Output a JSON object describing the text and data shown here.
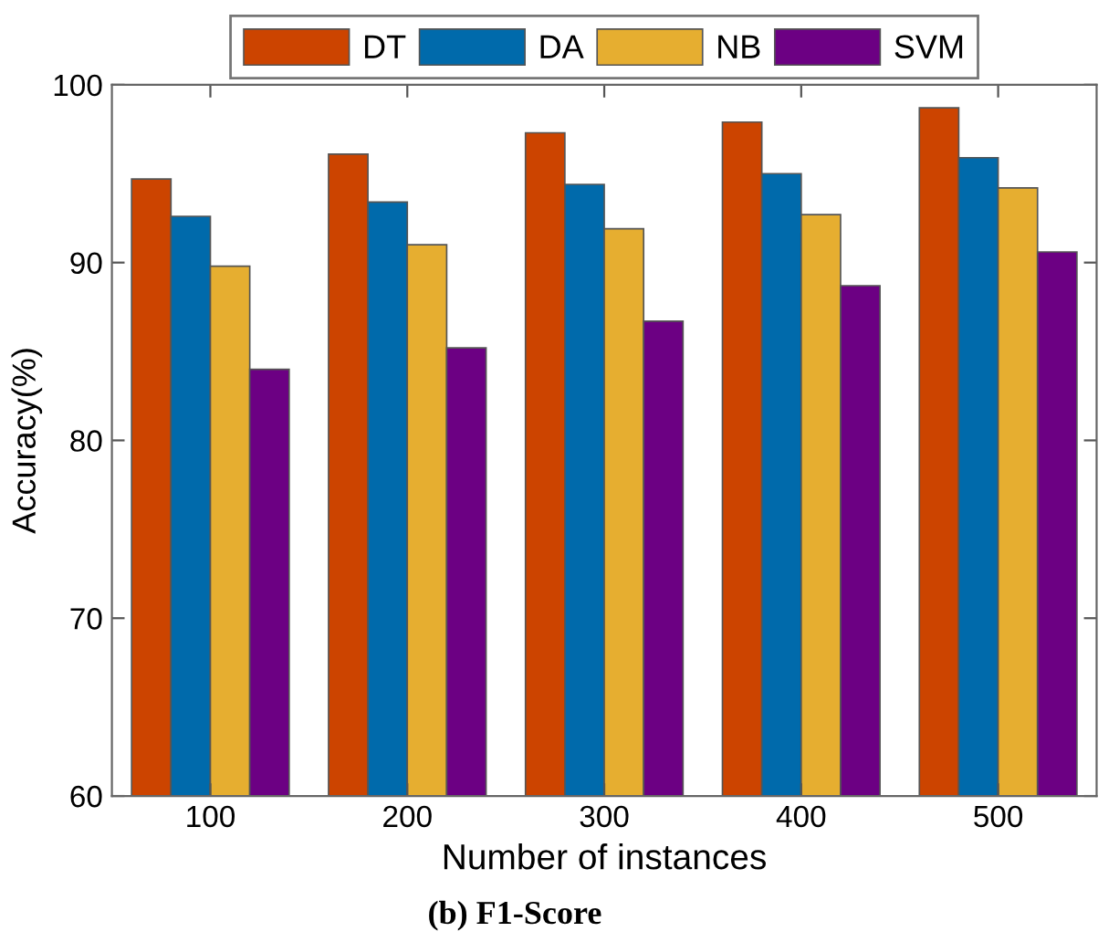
{
  "chart_data": {
    "type": "bar",
    "xlabel": "Number of instances",
    "ylabel": "Accuracy(%)",
    "categories": [
      "100",
      "200",
      "300",
      "400",
      "500"
    ],
    "series": [
      {
        "name": "DT",
        "color": "#cc4400",
        "values": [
          94.7,
          96.1,
          97.3,
          97.9,
          98.7
        ]
      },
      {
        "name": "DA",
        "color": "#006aab",
        "values": [
          92.6,
          93.4,
          94.4,
          95.0,
          95.9
        ]
      },
      {
        "name": "NB",
        "color": "#e6ae30",
        "values": [
          89.8,
          91.0,
          91.9,
          92.7,
          94.2
        ]
      },
      {
        "name": "SVM",
        "color": "#6c0083",
        "values": [
          84.0,
          85.2,
          86.7,
          88.7,
          90.6
        ]
      }
    ],
    "ylim": [
      60,
      100
    ],
    "yticks": [
      60,
      70,
      80,
      90,
      100
    ],
    "grid": false,
    "legend": "top",
    "annotations": [
      "(b) F1-Score"
    ]
  }
}
